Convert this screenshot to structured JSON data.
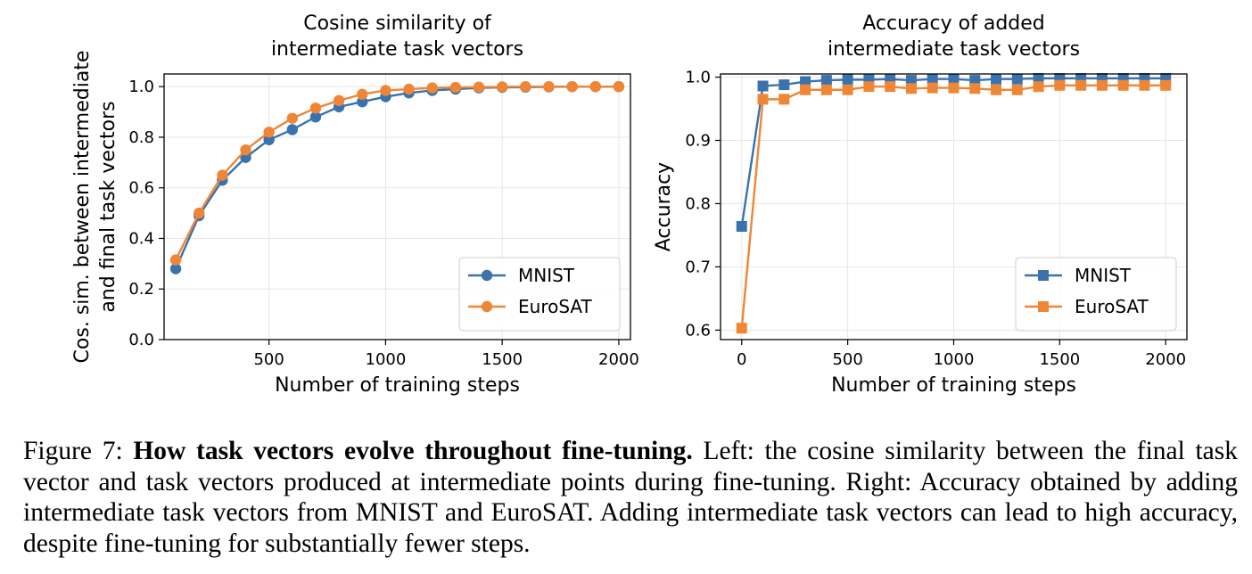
{
  "chart_data": [
    {
      "type": "line",
      "title": "Cosine similarity of\nintermediate task vectors",
      "xlabel": "Number of training steps",
      "ylabel": "Cos. sim. between intermediate\nand final task vectors",
      "xlim": [
        50,
        2050
      ],
      "ylim": [
        0.0,
        1.05
      ],
      "xticks": [
        500,
        1000,
        1500,
        2000
      ],
      "yticks": [
        0.0,
        0.2,
        0.4,
        0.6,
        0.8,
        1.0
      ],
      "xtick_labels": [
        "500",
        "1000",
        "1500",
        "2000"
      ],
      "ytick_labels": [
        "0.0",
        "0.2",
        "0.4",
        "0.6",
        "0.8",
        "1.0"
      ],
      "grid": true,
      "legend": "lower-right",
      "marker": "circle",
      "x": [
        100,
        200,
        300,
        400,
        500,
        600,
        700,
        800,
        900,
        1000,
        1100,
        1200,
        1300,
        1400,
        1500,
        1600,
        1700,
        1800,
        1900,
        2000
      ],
      "series": [
        {
          "name": "MNIST",
          "color": "#3a72ad",
          "values": [
            0.28,
            0.49,
            0.63,
            0.72,
            0.79,
            0.83,
            0.88,
            0.92,
            0.94,
            0.96,
            0.975,
            0.985,
            0.99,
            0.995,
            0.997,
            0.998,
            0.999,
            1.0,
            1.0,
            1.0
          ]
        },
        {
          "name": "EuroSAT",
          "color": "#ee8636",
          "values": [
            0.315,
            0.5,
            0.65,
            0.75,
            0.82,
            0.875,
            0.915,
            0.945,
            0.97,
            0.985,
            0.99,
            0.995,
            0.997,
            0.998,
            0.999,
            1.0,
            1.0,
            1.0,
            1.0,
            1.0
          ]
        }
      ]
    },
    {
      "type": "line",
      "title": "Accuracy of added\nintermediate task vectors",
      "xlabel": "Number of training steps",
      "ylabel": "Accuracy",
      "xlim": [
        -100,
        2100
      ],
      "ylim": [
        0.585,
        1.005
      ],
      "xticks": [
        0,
        500,
        1000,
        1500,
        2000
      ],
      "yticks": [
        0.6,
        0.7,
        0.8,
        0.9,
        1.0
      ],
      "xtick_labels": [
        "0",
        "500",
        "1000",
        "1500",
        "2000"
      ],
      "ytick_labels": [
        "0.6",
        "0.7",
        "0.8",
        "0.9",
        "1.0"
      ],
      "grid": true,
      "legend": "lower-right",
      "marker": "square",
      "x": [
        0,
        100,
        200,
        300,
        400,
        500,
        600,
        700,
        800,
        900,
        1000,
        1100,
        1200,
        1300,
        1400,
        1500,
        1600,
        1700,
        1800,
        1900,
        2000
      ],
      "series": [
        {
          "name": "MNIST",
          "color": "#3a72ad",
          "values": [
            0.764,
            0.986,
            0.988,
            0.993,
            0.995,
            0.996,
            0.996,
            0.997,
            0.995,
            0.997,
            0.997,
            0.995,
            0.997,
            0.997,
            0.998,
            0.998,
            0.998,
            0.998,
            0.998,
            0.998,
            0.998
          ]
        },
        {
          "name": "EuroSAT",
          "color": "#ee8636",
          "values": [
            0.603,
            0.965,
            0.965,
            0.98,
            0.98,
            0.98,
            0.985,
            0.985,
            0.982,
            0.983,
            0.983,
            0.982,
            0.98,
            0.98,
            0.985,
            0.987,
            0.987,
            0.987,
            0.987,
            0.987,
            0.987
          ]
        }
      ]
    }
  ],
  "caption": {
    "label": "Figure 7:",
    "bold": "How task vectors evolve throughout fine-tuning.",
    "text": "Left: the cosine similarity between the final task vector and task vectors produced at intermediate points during fine-tuning. Right: Accuracy obtained by adding intermediate task vectors from MNIST and EuroSAT. Adding intermediate task vectors can lead to high accuracy, despite fine-tuning for substantially fewer steps."
  }
}
